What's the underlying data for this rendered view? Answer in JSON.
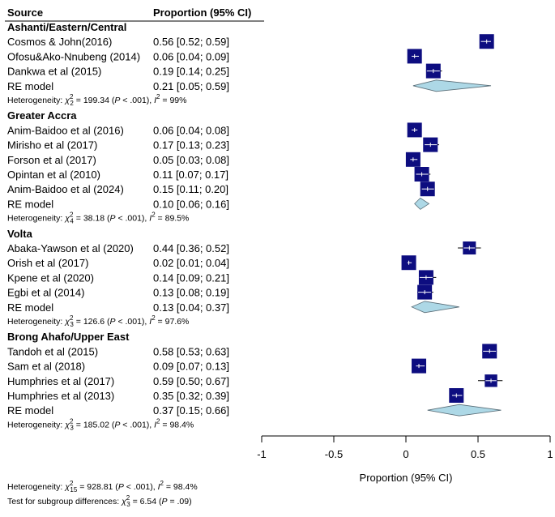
{
  "chart_data": {
    "type": "forest",
    "header": {
      "source": "Source",
      "estimate": "Proportion (95% CI)"
    },
    "xlabel": "Proportion (95% CI)",
    "xlim": [
      -1,
      1
    ],
    "xticks": [
      {
        "value": -1,
        "label": "-1"
      },
      {
        "value": -0.5,
        "label": "-0.5"
      },
      {
        "value": 0,
        "label": "0"
      },
      {
        "value": 0.5,
        "label": "0.5"
      },
      {
        "value": 1,
        "label": "1"
      }
    ],
    "groups": [
      {
        "name": "Ashanti/Eastern/Central",
        "studies": [
          {
            "label": "Cosmos & John(2016)",
            "text": "0.56 [0.52; 0.59]",
            "est": 0.56,
            "lo": 0.52,
            "hi": 0.59
          },
          {
            "label": "Ofosu&Ako-Nnubeng (2014)",
            "text": "0.06 [0.04; 0.09]",
            "est": 0.06,
            "lo": 0.04,
            "hi": 0.09
          },
          {
            "label": "Dankwa et al (2015)",
            "text": "0.19 [0.14; 0.25]",
            "est": 0.19,
            "lo": 0.14,
            "hi": 0.25
          }
        ],
        "re": {
          "label": "RE model",
          "text": "0.21 [0.05; 0.59]",
          "est": 0.21,
          "lo": 0.05,
          "hi": 0.59
        },
        "heterogeneity": {
          "prefix": "Heterogeneity: ",
          "chi": "χ",
          "df": "2",
          "sup": "2",
          "mid": " = 199.34 (",
          "p": "P",
          "ptext": " < .001), ",
          "i": "I",
          "isup": "2",
          "itext": " = 99%"
        }
      },
      {
        "name": "Greater Accra",
        "studies": [
          {
            "label": "Anim-Baidoo et al (2016)",
            "text": "0.06 [0.04; 0.08]",
            "est": 0.06,
            "lo": 0.04,
            "hi": 0.08
          },
          {
            "label": "Mirisho et al (2017)",
            "text": "0.17 [0.13; 0.23]",
            "est": 0.17,
            "lo": 0.13,
            "hi": 0.23
          },
          {
            "label": "Forson et al (2017)",
            "text": "0.05 [0.03; 0.08]",
            "est": 0.05,
            "lo": 0.03,
            "hi": 0.08
          },
          {
            "label": "Opintan et al (2010)",
            "text": "0.11 [0.07; 0.17]",
            "est": 0.11,
            "lo": 0.07,
            "hi": 0.17
          },
          {
            "label": "Anim-Baidoo et al (2024)",
            "text": "0.15 [0.11; 0.20]",
            "est": 0.15,
            "lo": 0.11,
            "hi": 0.2
          }
        ],
        "re": {
          "label": "RE model",
          "text": "0.10 [0.06; 0.16]",
          "est": 0.1,
          "lo": 0.06,
          "hi": 0.16
        },
        "heterogeneity": {
          "prefix": "Heterogeneity: ",
          "chi": "χ",
          "df": "4",
          "sup": "2",
          "mid": " = 38.18 (",
          "p": "P",
          "ptext": " < .001), ",
          "i": "I",
          "isup": "2",
          "itext": " = 89.5%"
        }
      },
      {
        "name": "Volta",
        "studies": [
          {
            "label": "Abaka-Yawson et al (2020)",
            "text": "0.44 [0.36; 0.52]",
            "est": 0.44,
            "lo": 0.36,
            "hi": 0.52
          },
          {
            "label": "Orish et al (2017)",
            "text": "0.02 [0.01; 0.04]",
            "est": 0.02,
            "lo": 0.01,
            "hi": 0.04
          },
          {
            "label": "Kpene et al (2020)",
            "text": "0.14 [0.09; 0.21]",
            "est": 0.14,
            "lo": 0.09,
            "hi": 0.21
          },
          {
            "label": "Egbi et al (2014)",
            "text": "0.13 [0.08; 0.19]",
            "est": 0.13,
            "lo": 0.08,
            "hi": 0.19
          }
        ],
        "re": {
          "label": "RE model",
          "text": "0.13 [0.04; 0.37]",
          "est": 0.13,
          "lo": 0.04,
          "hi": 0.37
        },
        "heterogeneity": {
          "prefix": "Heterogeneity: ",
          "chi": "χ",
          "df": "3",
          "sup": "2",
          "mid": " = 126.6 (",
          "p": "P",
          "ptext": " < .001), ",
          "i": "I",
          "isup": "2",
          "itext": " = 97.6%"
        }
      },
      {
        "name": "Brong Ahafo/Upper East",
        "studies": [
          {
            "label": "Tandoh et al (2015)",
            "text": "0.58 [0.53; 0.63]",
            "est": 0.58,
            "lo": 0.53,
            "hi": 0.63
          },
          {
            "label": "Sam et al (2018)",
            "text": "0.09 [0.07; 0.13]",
            "est": 0.09,
            "lo": 0.07,
            "hi": 0.13
          },
          {
            "label": "Humphries et al (2017)",
            "text": "0.59 [0.50; 0.67]",
            "est": 0.59,
            "lo": 0.5,
            "hi": 0.67
          },
          {
            "label": "Humphries et al (2013)",
            "text": "0.35 [0.32; 0.39]",
            "est": 0.35,
            "lo": 0.32,
            "hi": 0.39
          }
        ],
        "re": {
          "label": "RE model",
          "text": "0.37 [0.15; 0.66]",
          "est": 0.37,
          "lo": 0.15,
          "hi": 0.66
        },
        "heterogeneity": {
          "prefix": "Heterogeneity: ",
          "chi": "χ",
          "df": "3",
          "sup": "2",
          "mid": " = 185.02 (",
          "p": "P",
          "ptext": " < .001), ",
          "i": "I",
          "isup": "2",
          "itext": " = 98.4%"
        }
      }
    ],
    "overall_heterogeneity": {
      "prefix": "Heterogeneity: ",
      "chi": "χ",
      "df": "15",
      "sup": "2",
      "mid": " = 928.81 (",
      "p": "P",
      "ptext": " < .001), ",
      "i": "I",
      "isup": "2",
      "itext": " = 98.4%"
    },
    "subgroup_test": {
      "prefix": "Test for subgroup differences: ",
      "chi": "χ",
      "df": "3",
      "sup": "2",
      "mid": " = 6.54 (",
      "p": "P",
      "ptext": " = .09)"
    }
  },
  "colors": {
    "square": "#0d0d80",
    "diamond_fill": "#add8e6",
    "diamond_stroke": "#5a6e78",
    "ci_line": "#000000",
    "ci_inside": "#ffffff"
  }
}
